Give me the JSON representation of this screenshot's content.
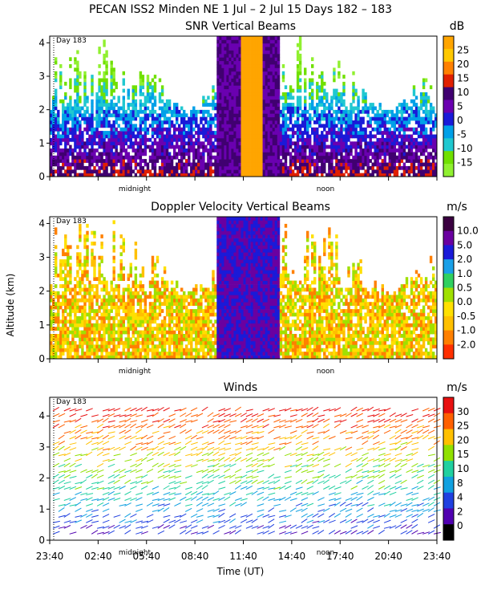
{
  "title": "PECAN ISS2 Minden NE    1 Jul –  2 Jul 15 Days 182 – 183",
  "ylabel": "Altitude (km)",
  "xlabel": "Time (UT)",
  "time_ticks": [
    "23:40",
    "02:40",
    "05:40",
    "08:40",
    "11:40",
    "14:40",
    "17:40",
    "20:40",
    "23:40"
  ],
  "marker_labels": {
    "midnight": "midnight",
    "noon": "noon",
    "day": "Day 183"
  },
  "chart_data": [
    {
      "type": "heatmap",
      "title": "SNR Vertical Beams",
      "unit": "dB",
      "ylim": [
        0,
        4.2
      ],
      "yticks": [
        "0",
        "1",
        "2",
        "3",
        "4"
      ],
      "colorbar": {
        "labels": [
          "25",
          "20",
          "15",
          "10",
          "5",
          "0",
          "-5",
          "-10",
          "-15"
        ],
        "colors": [
          "#ffa500",
          "#ffc800",
          "#ff8000",
          "#e02000",
          "#400070",
          "#6a00b0",
          "#1a1ad8",
          "#00a0e8",
          "#20c8d0",
          "#70e000",
          "#90f030"
        ]
      }
    },
    {
      "type": "heatmap",
      "title": "Doppler Velocity Vertical Beams",
      "unit": "m/s",
      "ylim": [
        0,
        4.2
      ],
      "yticks": [
        "0",
        "1",
        "2",
        "3",
        "4"
      ],
      "colorbar": {
        "labels": [
          "10.0",
          "5.0",
          "2.0",
          "1.0",
          "0.5",
          "0.0",
          "-0.5",
          "-1.0",
          "-2.0"
        ],
        "colors": [
          "#3a0040",
          "#6a00a0",
          "#1a1ad8",
          "#1aa0e8",
          "#30d060",
          "#a0e000",
          "#ffe000",
          "#ffc000",
          "#ff8000",
          "#ff3000"
        ]
      }
    },
    {
      "type": "barbs",
      "title": "Winds",
      "unit": "m/s",
      "ylim": [
        0,
        4.6
      ],
      "yticks": [
        "0",
        "1",
        "2",
        "3",
        "4"
      ],
      "colorbar": {
        "labels": [
          "30",
          "25",
          "20",
          "15",
          "10",
          "8",
          "4",
          "2",
          "0"
        ],
        "colors": [
          "#e81010",
          "#ff6000",
          "#ffc000",
          "#90e000",
          "#20d0a0",
          "#10a0e0",
          "#2040e0",
          "#5000b0",
          "#000000"
        ]
      }
    }
  ]
}
